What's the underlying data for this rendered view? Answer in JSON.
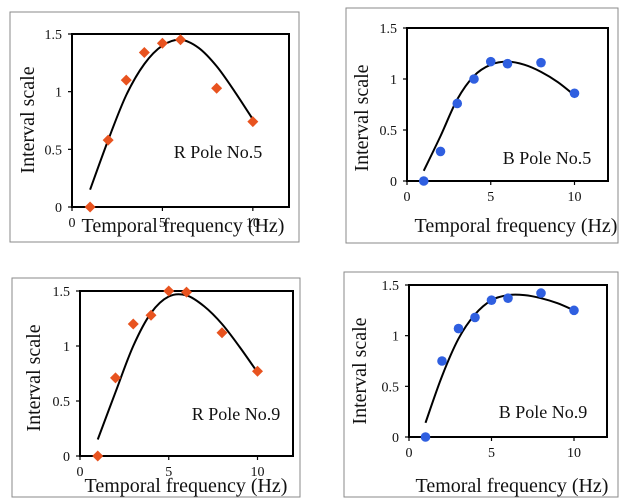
{
  "chart_data": [
    {
      "type": "scatter",
      "annotation": "R Pole No.5",
      "xlabel": "Temporal frequency (Hz)",
      "ylabel": "Interval scale",
      "xlim": [
        0,
        12
      ],
      "ylim": [
        0,
        1.5
      ],
      "xticks": [
        "0",
        "5",
        "10"
      ],
      "yticks": [
        "0",
        "0.5",
        "1",
        "1.5"
      ],
      "marker": "diamond",
      "marker_color": "#e8531f",
      "points": {
        "x": [
          1,
          2,
          3,
          4,
          5,
          6,
          8,
          10
        ],
        "y": [
          0.0,
          0.58,
          1.1,
          1.34,
          1.42,
          1.45,
          1.03,
          0.74
        ]
      },
      "fit": {
        "x": [
          1,
          2,
          3,
          4,
          5,
          6,
          7,
          8,
          9,
          10
        ],
        "y": [
          0.15,
          0.58,
          0.97,
          1.24,
          1.4,
          1.45,
          1.38,
          1.22,
          1.0,
          0.76
        ]
      }
    },
    {
      "type": "scatter",
      "annotation": "B Pole No.5",
      "xlabel": "Temporal frequency (Hz)",
      "ylabel": "Interval scale",
      "xlim": [
        0,
        12
      ],
      "ylim": [
        0,
        1.5
      ],
      "xticks": [
        "0",
        "5",
        "10"
      ],
      "yticks": [
        "0",
        "0.5",
        "1",
        "1.5"
      ],
      "marker": "circle",
      "marker_color": "#2f5fe0",
      "points": {
        "x": [
          1,
          2,
          3,
          4,
          5,
          6,
          8,
          10
        ],
        "y": [
          0.0,
          0.29,
          0.76,
          1.0,
          1.17,
          1.15,
          1.16,
          0.86
        ]
      },
      "fit": {
        "x": [
          1,
          2,
          3,
          4,
          5,
          6,
          7,
          8,
          9,
          10
        ],
        "y": [
          0.1,
          0.44,
          0.8,
          1.03,
          1.14,
          1.17,
          1.14,
          1.07,
          0.97,
          0.84
        ]
      }
    },
    {
      "type": "scatter",
      "annotation": "R Pole No.9",
      "xlabel": "Temporal frequency (Hz)",
      "ylabel": "Interval scale",
      "xlim": [
        0,
        12
      ],
      "ylim": [
        0,
        1.5
      ],
      "xticks": [
        "0",
        "5",
        "10"
      ],
      "yticks": [
        "0",
        "0.5",
        "1",
        "1.5"
      ],
      "marker": "diamond",
      "marker_color": "#e8531f",
      "points": {
        "x": [
          1,
          2,
          3,
          4,
          5,
          6,
          8,
          10
        ],
        "y": [
          0.0,
          0.71,
          1.2,
          1.28,
          1.5,
          1.49,
          1.12,
          0.77
        ]
      },
      "fit": {
        "x": [
          1,
          2,
          3,
          4,
          5,
          6,
          7,
          8,
          9,
          10
        ],
        "y": [
          0.15,
          0.58,
          1.0,
          1.3,
          1.45,
          1.46,
          1.36,
          1.2,
          0.99,
          0.76
        ]
      }
    },
    {
      "type": "scatter",
      "annotation": "B Pole No.9",
      "xlabel": "Temoral frequency (Hz)",
      "ylabel": "Interval scale",
      "xlim": [
        0,
        12
      ],
      "ylim": [
        0,
        1.5
      ],
      "xticks": [
        "0",
        "5",
        "10"
      ],
      "yticks": [
        "0",
        "0.5",
        "1",
        "1.5"
      ],
      "marker": "circle",
      "marker_color": "#2f5fe0",
      "points": {
        "x": [
          1,
          2,
          3,
          4,
          5,
          6,
          8,
          10
        ],
        "y": [
          0.0,
          0.75,
          1.07,
          1.18,
          1.35,
          1.37,
          1.42,
          1.25
        ]
      },
      "fit": {
        "x": [
          1,
          2,
          3,
          4,
          5,
          6,
          7,
          8,
          9,
          10
        ],
        "y": [
          0.14,
          0.6,
          0.97,
          1.21,
          1.35,
          1.4,
          1.4,
          1.37,
          1.32,
          1.25
        ]
      }
    }
  ]
}
